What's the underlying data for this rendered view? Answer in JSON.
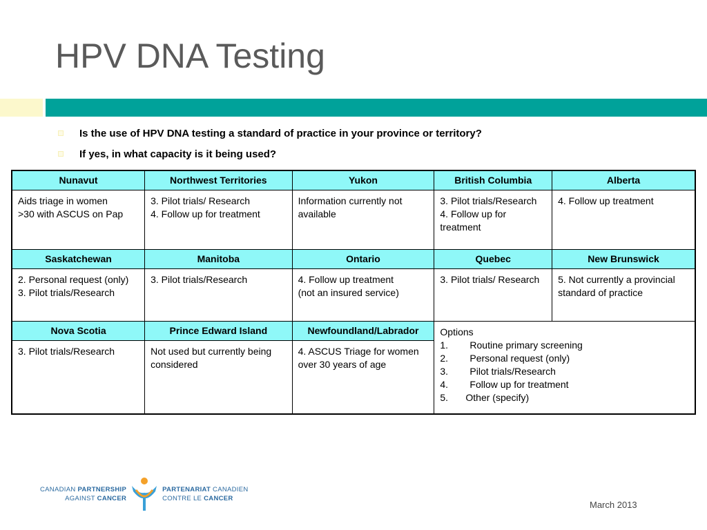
{
  "slide": {
    "title": "HPV DNA Testing",
    "date": "March 2013"
  },
  "questions": [
    "Is the use of HPV DNA testing a standard of practice in your province or territory?",
    "If yes, in what capacity is it being used?"
  ],
  "table": {
    "row1": {
      "headers": [
        "Nunavut",
        "Northwest Territories",
        "Yukon",
        "British Columbia",
        "Alberta"
      ],
      "cells": [
        [
          "Aids triage in women",
          ">30 with ASCUS on Pap"
        ],
        [
          "3. Pilot trials/ Research",
          "4. Follow up for treatment"
        ],
        [
          "Information currently not available"
        ],
        [
          "3. Pilot trials/Research",
          "4. Follow up for treatment"
        ],
        [
          "4. Follow up treatment"
        ]
      ]
    },
    "row2": {
      "headers": [
        "Saskatchewan",
        "Manitoba",
        "Ontario",
        "Quebec",
        "New Brunswick"
      ],
      "cells": [
        [
          "2. Personal request (only)",
          "3. Pilot trials/Research"
        ],
        [
          "3. Pilot trials/Research"
        ],
        [
          "4. Follow up treatment",
          "(not an insured service)"
        ],
        [
          "3. Pilot trials/ Research"
        ],
        [
          "5. Not  currently a provincial standard of practice"
        ]
      ]
    },
    "row3": {
      "headers": [
        "Nova Scotia",
        "Prince Edward Island",
        "Newfoundland/Labrador"
      ],
      "cells": [
        [
          "3. Pilot trials/Research"
        ],
        [
          "Not used but  currently being considered"
        ],
        [
          "4. ASCUS Triage for women over 30 years of age"
        ]
      ]
    },
    "options": {
      "title": "Options",
      "items": [
        {
          "num": "1.",
          "text": "Routine primary screening"
        },
        {
          "num": "2.",
          "text": "Personal request (only)"
        },
        {
          "num": "3.",
          "text": "Pilot trials/Research"
        },
        {
          "num": "4.",
          "text": "Follow up for treatment"
        },
        {
          "num": "5.",
          "text": "Other (specify)"
        }
      ]
    }
  },
  "logo": {
    "en_line1_plain": "CANADIAN ",
    "en_line1_bold": "PARTNERSHIP",
    "en_line2_plain": "AGAINST ",
    "en_line2_bold": "CANCER",
    "fr_line1_bold": "PARTENARIAT",
    "fr_line1_plain": " CANADIEN",
    "fr_line2_plain": "CONTRE LE ",
    "fr_line2_bold": "CANCER"
  }
}
